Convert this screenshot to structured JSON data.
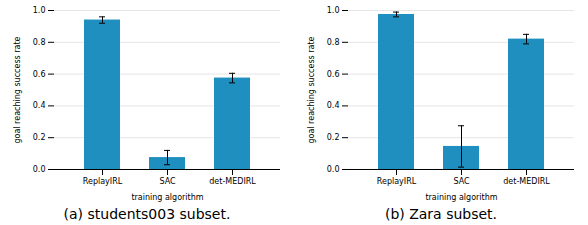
{
  "chart_data": [
    {
      "type": "bar",
      "title": "(a) students003 subset.",
      "categories": [
        "ReplayIRL",
        "SAC",
        "det-MEDIRL"
      ],
      "values": [
        0.94,
        0.075,
        0.575
      ],
      "errors": [
        0.02,
        0.045,
        0.03
      ],
      "xlabel": "training algorithm",
      "ylabel": "goal reaching success rate",
      "ylim": [
        0.0,
        1.0
      ],
      "yticks": [
        {
          "value": 0.0,
          "label": "0.0"
        },
        0.2,
        0.4,
        0.6,
        0.8,
        {
          "value": 1.0,
          "label": "1.0"
        }
      ],
      "color": "#1f8fc0",
      "grid": true
    },
    {
      "type": "bar",
      "title": "(b) Zara subset.",
      "categories": [
        "ReplayIRL",
        "SAC",
        "det-MEDIRL"
      ],
      "values": [
        0.975,
        0.145,
        0.82
      ],
      "errors": [
        0.015,
        0.13,
        0.03
      ],
      "xlabel": "training algorithm",
      "ylabel": "goal reaching success rate",
      "ylim": [
        0.0,
        1.0
      ],
      "yticks": [
        {
          "value": 0.0,
          "label": "0.0"
        },
        0.2,
        0.4,
        0.6,
        0.8,
        {
          "value": 1.0,
          "label": "1.0"
        }
      ],
      "color": "#1f8fc0",
      "grid": true
    }
  ]
}
